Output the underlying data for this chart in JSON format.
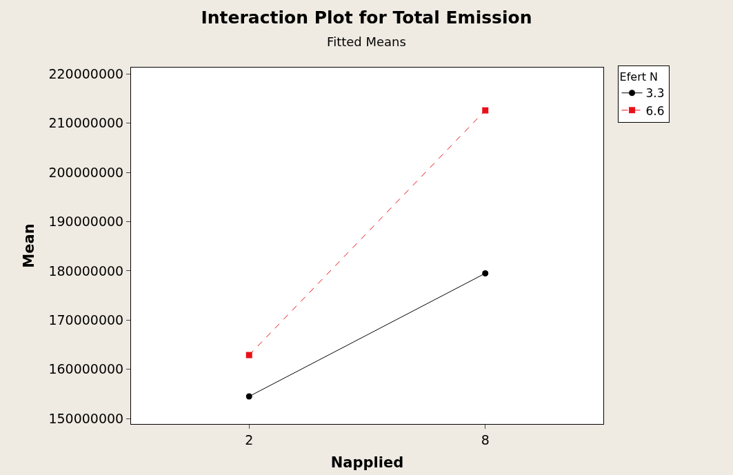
{
  "chart_data": {
    "type": "line",
    "title": "Interaction Plot for Total Emission",
    "subtitle": "Fitted Means",
    "xlabel": "Napplied",
    "ylabel": "Mean",
    "legend_title": "Efert N",
    "categories": [
      "2",
      "8"
    ],
    "series": [
      {
        "name": "3.3",
        "color": "#000000",
        "values": [
          154500000,
          179500000
        ],
        "marker": "circle",
        "line_style": "solid"
      },
      {
        "name": "6.6",
        "color": "#e8101a",
        "values": [
          162900000,
          212600000
        ],
        "marker": "square",
        "line_style": "dashed"
      }
    ],
    "ylim": [
      148900000,
      221300000
    ],
    "yticks": [
      150000000,
      160000000,
      170000000,
      180000000,
      190000000,
      200000000,
      210000000,
      220000000
    ],
    "legend": "top right"
  }
}
